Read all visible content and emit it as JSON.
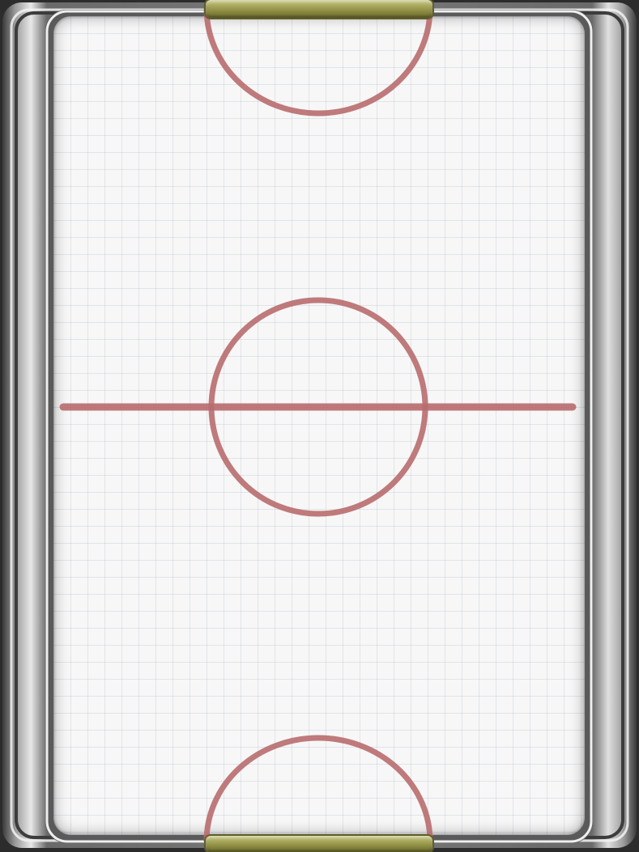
{
  "game": {
    "name": "",
    "surface": {
      "color": "#f7f7f7",
      "grid_color": "#c4cad6"
    },
    "markings": {
      "color": "#b86b6e",
      "center_line": true,
      "center_circle": true,
      "goal_creases": [
        "top",
        "bottom"
      ]
    },
    "frame": {
      "color": "#8a8a8a",
      "style": "chrome"
    },
    "goals": {
      "color": "#a7a65a",
      "positions": [
        "top",
        "bottom"
      ]
    }
  }
}
